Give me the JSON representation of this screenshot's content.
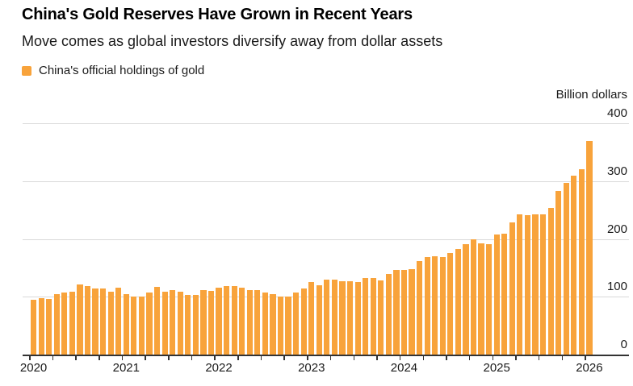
{
  "header": {
    "title": "China's Gold Reserves Have Grown in Recent Years",
    "subtitle": "Move comes as global investors diversify away from dollar assets"
  },
  "legend": {
    "label": "China's official holdings of gold",
    "swatch_color": "#F8A33B"
  },
  "colors": {
    "bar": "#F8A33B",
    "gridline": "#d9d9d9",
    "axis": "#333333",
    "text": "#1a1a1a"
  },
  "chart_data": {
    "type": "bar",
    "title": "China's Gold Reserves Have Grown in Recent Years",
    "subtitle": "Move comes as global investors diversify away from dollar assets",
    "series_name": "China's official holdings of gold",
    "unit_label": "Billion dollars",
    "ylabel": "Billion dollars",
    "ylim": [
      0,
      400
    ],
    "y_ticks": [
      0,
      100,
      200,
      300,
      400
    ],
    "grid": "horizontal",
    "legend_position": "top-left",
    "x_frequency": "monthly",
    "x_start": "2020-01",
    "x_end": "2026-01",
    "x_year_labels": [
      "2020",
      "2021",
      "2022",
      "2023",
      "2024",
      "2025",
      "2026"
    ],
    "values": [
      95,
      97,
      96,
      104,
      107,
      109,
      121,
      119,
      114,
      114,
      109,
      115,
      104,
      101,
      101,
      107,
      117,
      109,
      111,
      109,
      103,
      103,
      111,
      110,
      115,
      119,
      119,
      116,
      112,
      111,
      107,
      104,
      101,
      100,
      108,
      114,
      125,
      120,
      129,
      129,
      127,
      127,
      126,
      132,
      132,
      128,
      140,
      146,
      147,
      148,
      161,
      168,
      170,
      169,
      176,
      183,
      191,
      199,
      193,
      191,
      207,
      209,
      229,
      242,
      241,
      242,
      243,
      253,
      283,
      297,
      310,
      320,
      370
    ]
  }
}
